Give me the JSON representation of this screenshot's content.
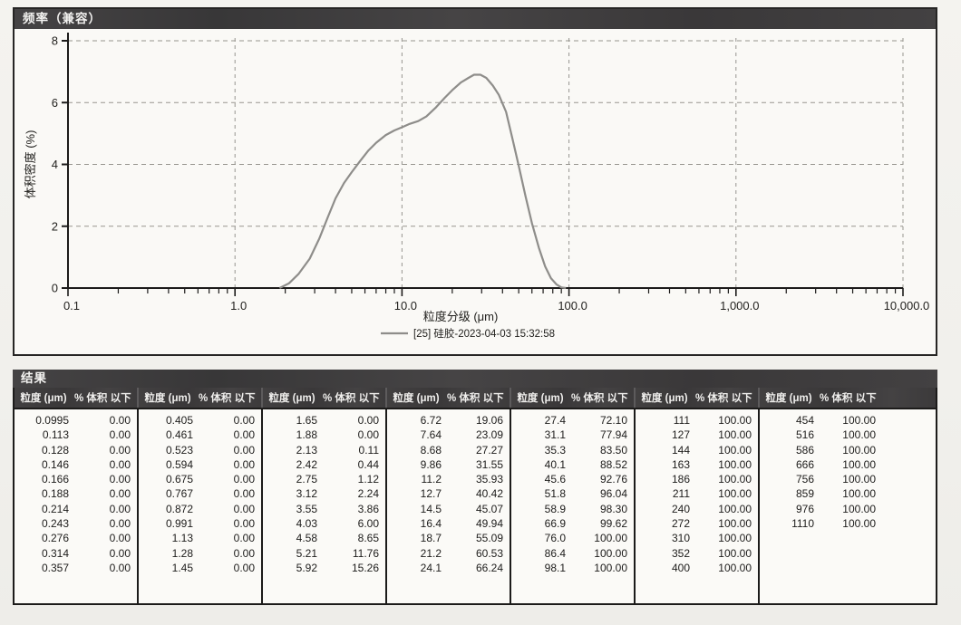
{
  "chart_panel": {
    "title": "频率（兼容）"
  },
  "chart_data": {
    "type": "line",
    "title": "频率（兼容）",
    "xlabel": "粒度分级 (μm)",
    "ylabel": "体积密度 (%)",
    "x_scale": "log",
    "xlim": [
      0.1,
      10000
    ],
    "ylim": [
      0,
      8
    ],
    "grid": "dashed",
    "legend_position": "bottom",
    "xticks": [
      {
        "v": 0.1,
        "label": "0.1"
      },
      {
        "v": 1,
        "label": "1.0"
      },
      {
        "v": 10,
        "label": "10.0"
      },
      {
        "v": 100,
        "label": "100.0"
      },
      {
        "v": 1000,
        "label": "1,000.0"
      },
      {
        "v": 10000,
        "label": "10,000.0"
      }
    ],
    "yticks": [
      0,
      2,
      4,
      6,
      8
    ],
    "series": [
      {
        "name": "[25] 硅胶-2023-04-03 15:32:58",
        "color": "#8e8d8a",
        "points": [
          [
            1.85,
            0
          ],
          [
            2.1,
            0.15
          ],
          [
            2.4,
            0.45
          ],
          [
            2.8,
            0.95
          ],
          [
            3.2,
            1.6
          ],
          [
            3.6,
            2.3
          ],
          [
            4.0,
            2.9
          ],
          [
            4.5,
            3.4
          ],
          [
            5.0,
            3.75
          ],
          [
            5.6,
            4.1
          ],
          [
            6.3,
            4.45
          ],
          [
            7.0,
            4.7
          ],
          [
            8.0,
            4.95
          ],
          [
            9.0,
            5.1
          ],
          [
            10.0,
            5.2
          ],
          [
            11.0,
            5.3
          ],
          [
            12.5,
            5.4
          ],
          [
            14.0,
            5.55
          ],
          [
            16.0,
            5.85
          ],
          [
            18.0,
            6.15
          ],
          [
            20.0,
            6.4
          ],
          [
            22.5,
            6.65
          ],
          [
            25.0,
            6.8
          ],
          [
            27.0,
            6.9
          ],
          [
            29.5,
            6.9
          ],
          [
            32.0,
            6.8
          ],
          [
            35.0,
            6.55
          ],
          [
            38.0,
            6.25
          ],
          [
            42.0,
            5.7
          ],
          [
            46.0,
            4.8
          ],
          [
            50.0,
            3.95
          ],
          [
            55.0,
            2.95
          ],
          [
            60.0,
            2.1
          ],
          [
            66.0,
            1.3
          ],
          [
            72.0,
            0.7
          ],
          [
            78.0,
            0.32
          ],
          [
            84.0,
            0.12
          ],
          [
            90.0,
            0.02
          ],
          [
            96.0,
            0
          ]
        ]
      }
    ]
  },
  "results": {
    "title": "结果",
    "col_headers": {
      "size": "粒度 (μm)",
      "pct": "% 体积 以下"
    },
    "groups": [
      [
        [
          "0.0995",
          "0.00"
        ],
        [
          "0.113",
          "0.00"
        ],
        [
          "0.128",
          "0.00"
        ],
        [
          "0.146",
          "0.00"
        ],
        [
          "0.166",
          "0.00"
        ],
        [
          "0.188",
          "0.00"
        ],
        [
          "0.214",
          "0.00"
        ],
        [
          "0.243",
          "0.00"
        ],
        [
          "0.276",
          "0.00"
        ],
        [
          "0.314",
          "0.00"
        ],
        [
          "0.357",
          "0.00"
        ]
      ],
      [
        [
          "0.405",
          "0.00"
        ],
        [
          "0.461",
          "0.00"
        ],
        [
          "0.523",
          "0.00"
        ],
        [
          "0.594",
          "0.00"
        ],
        [
          "0.675",
          "0.00"
        ],
        [
          "0.767",
          "0.00"
        ],
        [
          "0.872",
          "0.00"
        ],
        [
          "0.991",
          "0.00"
        ],
        [
          "1.13",
          "0.00"
        ],
        [
          "1.28",
          "0.00"
        ],
        [
          "1.45",
          "0.00"
        ]
      ],
      [
        [
          "1.65",
          "0.00"
        ],
        [
          "1.88",
          "0.00"
        ],
        [
          "2.13",
          "0.11"
        ],
        [
          "2.42",
          "0.44"
        ],
        [
          "2.75",
          "1.12"
        ],
        [
          "3.12",
          "2.24"
        ],
        [
          "3.55",
          "3.86"
        ],
        [
          "4.03",
          "6.00"
        ],
        [
          "4.58",
          "8.65"
        ],
        [
          "5.21",
          "11.76"
        ],
        [
          "5.92",
          "15.26"
        ]
      ],
      [
        [
          "6.72",
          "19.06"
        ],
        [
          "7.64",
          "23.09"
        ],
        [
          "8.68",
          "27.27"
        ],
        [
          "9.86",
          "31.55"
        ],
        [
          "11.2",
          "35.93"
        ],
        [
          "12.7",
          "40.42"
        ],
        [
          "14.5",
          "45.07"
        ],
        [
          "16.4",
          "49.94"
        ],
        [
          "18.7",
          "55.09"
        ],
        [
          "21.2",
          "60.53"
        ],
        [
          "24.1",
          "66.24"
        ]
      ],
      [
        [
          "27.4",
          "72.10"
        ],
        [
          "31.1",
          "77.94"
        ],
        [
          "35.3",
          "83.50"
        ],
        [
          "40.1",
          "88.52"
        ],
        [
          "45.6",
          "92.76"
        ],
        [
          "51.8",
          "96.04"
        ],
        [
          "58.9",
          "98.30"
        ],
        [
          "66.9",
          "99.62"
        ],
        [
          "76.0",
          "100.00"
        ],
        [
          "86.4",
          "100.00"
        ],
        [
          "98.1",
          "100.00"
        ]
      ],
      [
        [
          "111",
          "100.00"
        ],
        [
          "127",
          "100.00"
        ],
        [
          "144",
          "100.00"
        ],
        [
          "163",
          "100.00"
        ],
        [
          "186",
          "100.00"
        ],
        [
          "211",
          "100.00"
        ],
        [
          "240",
          "100.00"
        ],
        [
          "272",
          "100.00"
        ],
        [
          "310",
          "100.00"
        ],
        [
          "352",
          "100.00"
        ],
        [
          "400",
          "100.00"
        ]
      ],
      [
        [
          "454",
          "100.00"
        ],
        [
          "516",
          "100.00"
        ],
        [
          "586",
          "100.00"
        ],
        [
          "666",
          "100.00"
        ],
        [
          "756",
          "100.00"
        ],
        [
          "859",
          "100.00"
        ],
        [
          "976",
          "100.00"
        ],
        [
          "1110",
          "100.00"
        ]
      ]
    ]
  }
}
